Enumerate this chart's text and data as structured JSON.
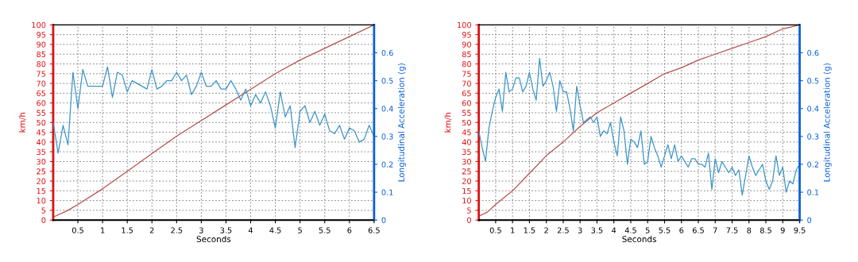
{
  "chart_data": [
    {
      "type": "line",
      "xlabel": "Seconds",
      "ylabel": "km/h",
      "y2label": "Longitudinal Acceleration (g)",
      "grid": true,
      "xlim": [
        0,
        6.5
      ],
      "xticks": [
        0.5,
        1,
        1.5,
        2,
        2.5,
        3,
        3.5,
        4,
        4.5,
        5,
        5.5,
        6,
        6.5
      ],
      "ylim": [
        0,
        100
      ],
      "yticks": [
        0,
        5,
        10,
        15,
        20,
        25,
        30,
        35,
        40,
        45,
        50,
        55,
        60,
        65,
        70,
        75,
        80,
        85,
        90,
        95,
        100
      ],
      "y2lim": [
        0,
        0.7
      ],
      "y2ticks": [
        0,
        0.1,
        0.2,
        0.3,
        0.4,
        0.5,
        0.6
      ],
      "series": [
        {
          "color": "#b5524e",
          "x": [
            0,
            0.3,
            0.5,
            1,
            1.5,
            2,
            2.5,
            3,
            3.5,
            4,
            4.5,
            5,
            5.5,
            6,
            6.5
          ],
          "values": [
            1.5,
            5,
            8,
            16,
            25,
            34,
            43,
            51,
            59,
            67,
            75,
            82,
            88,
            94,
            100
          ]
        },
        {
          "color": "#3a96c8",
          "axis": "y2",
          "x": [
            0,
            0.1,
            0.2,
            0.3,
            0.4,
            0.5,
            0.6,
            0.7,
            0.8,
            0.9,
            1,
            1.1,
            1.2,
            1.3,
            1.4,
            1.5,
            1.6,
            1.7,
            1.8,
            1.9,
            2,
            2.1,
            2.2,
            2.3,
            2.4,
            2.5,
            2.6,
            2.7,
            2.8,
            2.9,
            3,
            3.1,
            3.2,
            3.3,
            3.4,
            3.5,
            3.6,
            3.7,
            3.8,
            3.9,
            4,
            4.1,
            4.2,
            4.3,
            4.4,
            4.5,
            4.6,
            4.7,
            4.8,
            4.9,
            5,
            5.1,
            5.2,
            5.3,
            5.4,
            5.5,
            5.6,
            5.7,
            5.8,
            5.9,
            6,
            6.1,
            6.2,
            6.3,
            6.4,
            6.5
          ],
          "values": [
            0.35,
            0.24,
            0.34,
            0.27,
            0.53,
            0.4,
            0.54,
            0.48,
            0.48,
            0.48,
            0.48,
            0.55,
            0.44,
            0.53,
            0.52,
            0.46,
            0.5,
            0.49,
            0.48,
            0.47,
            0.54,
            0.47,
            0.48,
            0.5,
            0.5,
            0.53,
            0.5,
            0.52,
            0.45,
            0.48,
            0.53,
            0.48,
            0.48,
            0.5,
            0.47,
            0.47,
            0.5,
            0.47,
            0.43,
            0.47,
            0.41,
            0.45,
            0.42,
            0.46,
            0.41,
            0.33,
            0.46,
            0.37,
            0.41,
            0.26,
            0.39,
            0.41,
            0.35,
            0.39,
            0.34,
            0.38,
            0.32,
            0.31,
            0.34,
            0.29,
            0.33,
            0.32,
            0.28,
            0.29,
            0.34,
            0.3
          ]
        }
      ]
    },
    {
      "type": "line",
      "xlabel": "Seconds",
      "ylabel": "km/h",
      "y2label": "Longitudinal Acceleration (g)",
      "grid": true,
      "xlim": [
        0,
        9.5
      ],
      "xticks": [
        0.5,
        1,
        1.5,
        2,
        2.5,
        3,
        3.5,
        4,
        4.5,
        5,
        5.5,
        6,
        6.5,
        7,
        7.5,
        8,
        8.5,
        9,
        9.5
      ],
      "ylim": [
        0,
        100
      ],
      "yticks": [
        0,
        5,
        10,
        15,
        20,
        25,
        30,
        35,
        40,
        45,
        50,
        55,
        60,
        65,
        70,
        75,
        80,
        85,
        90,
        95,
        100
      ],
      "y2lim": [
        0,
        0.7
      ],
      "y2ticks": [
        0,
        0.1,
        0.2,
        0.3,
        0.4,
        0.5,
        0.6
      ],
      "series": [
        {
          "color": "#b5524e",
          "x": [
            0,
            0.25,
            0.5,
            1,
            1.5,
            2,
            2.5,
            3,
            3.5,
            4,
            4.5,
            5,
            5.5,
            6,
            6.5,
            7,
            7.5,
            8,
            8.5,
            9,
            9.5
          ],
          "values": [
            2,
            4,
            8,
            15,
            24,
            33,
            40,
            48,
            55,
            60,
            65,
            70,
            75,
            78,
            82,
            85,
            88,
            91,
            94,
            98,
            100
          ]
        },
        {
          "color": "#3a96c8",
          "axis": "y2",
          "x": [
            0,
            0.1,
            0.2,
            0.3,
            0.4,
            0.5,
            0.6,
            0.7,
            0.8,
            0.9,
            1,
            1.1,
            1.2,
            1.3,
            1.4,
            1.5,
            1.6,
            1.7,
            1.8,
            1.9,
            2,
            2.1,
            2.2,
            2.3,
            2.4,
            2.5,
            2.6,
            2.7,
            2.8,
            2.9,
            3,
            3.1,
            3.2,
            3.3,
            3.4,
            3.5,
            3.6,
            3.7,
            3.8,
            3.9,
            4,
            4.1,
            4.2,
            4.3,
            4.4,
            4.5,
            4.6,
            4.7,
            4.8,
            4.9,
            5,
            5.1,
            5.2,
            5.3,
            5.4,
            5.5,
            5.6,
            5.7,
            5.8,
            5.9,
            6,
            6.1,
            6.2,
            6.3,
            6.4,
            6.5,
            6.6,
            6.7,
            6.8,
            6.9,
            7,
            7.1,
            7.2,
            7.3,
            7.4,
            7.5,
            7.6,
            7.7,
            7.8,
            7.9,
            8,
            8.1,
            8.2,
            8.3,
            8.4,
            8.5,
            8.6,
            8.7,
            8.8,
            8.9,
            9,
            9.1,
            9.2,
            9.3,
            9.4,
            9.5
          ],
          "values": [
            0.32,
            0.26,
            0.21,
            0.33,
            0.39,
            0.44,
            0.47,
            0.39,
            0.53,
            0.46,
            0.47,
            0.51,
            0.51,
            0.46,
            0.48,
            0.53,
            0.47,
            0.43,
            0.58,
            0.48,
            0.5,
            0.53,
            0.48,
            0.39,
            0.5,
            0.46,
            0.46,
            0.4,
            0.32,
            0.48,
            0.41,
            0.35,
            0.36,
            0.37,
            0.35,
            0.37,
            0.3,
            0.32,
            0.31,
            0.35,
            0.28,
            0.23,
            0.37,
            0.32,
            0.2,
            0.29,
            0.28,
            0.26,
            0.32,
            0.2,
            0.21,
            0.3,
            0.26,
            0.23,
            0.19,
            0.23,
            0.27,
            0.22,
            0.27,
            0.21,
            0.23,
            0.21,
            0.19,
            0.22,
            0.22,
            0.2,
            0.2,
            0.19,
            0.24,
            0.11,
            0.22,
            0.17,
            0.21,
            0.19,
            0.17,
            0.19,
            0.16,
            0.18,
            0.09,
            0.16,
            0.23,
            0.19,
            0.16,
            0.18,
            0.2,
            0.14,
            0.11,
            0.14,
            0.23,
            0.16,
            0.19,
            0.1,
            0.14,
            0.13,
            0.18,
            0.2
          ]
        }
      ]
    }
  ]
}
